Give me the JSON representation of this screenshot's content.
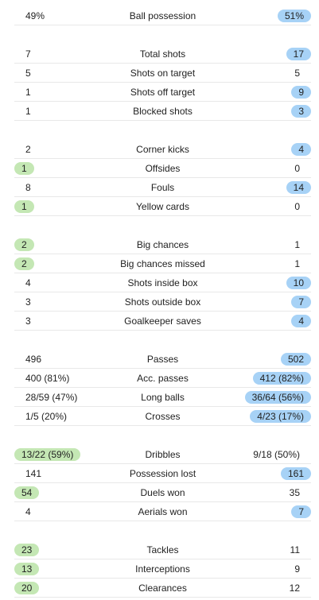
{
  "colors": {
    "home_highlight": "#c4e7b4",
    "away_highlight": "#a7d2f6",
    "divider": "#e8e8e8"
  },
  "groups": [
    {
      "rows": [
        {
          "label": "Ball possession",
          "home": "49%",
          "away": "51%",
          "hl": "away"
        }
      ]
    },
    {
      "rows": [
        {
          "label": "Total shots",
          "home": "7",
          "away": "17",
          "hl": "away"
        },
        {
          "label": "Shots on target",
          "home": "5",
          "away": "5",
          "hl": "none"
        },
        {
          "label": "Shots off target",
          "home": "1",
          "away": "9",
          "hl": "away"
        },
        {
          "label": "Blocked shots",
          "home": "1",
          "away": "3",
          "hl": "away"
        }
      ]
    },
    {
      "rows": [
        {
          "label": "Corner kicks",
          "home": "2",
          "away": "4",
          "hl": "away"
        },
        {
          "label": "Offsides",
          "home": "1",
          "away": "0",
          "hl": "home"
        },
        {
          "label": "Fouls",
          "home": "8",
          "away": "14",
          "hl": "away"
        },
        {
          "label": "Yellow cards",
          "home": "1",
          "away": "0",
          "hl": "home"
        }
      ]
    },
    {
      "rows": [
        {
          "label": "Big chances",
          "home": "2",
          "away": "1",
          "hl": "home"
        },
        {
          "label": "Big chances missed",
          "home": "2",
          "away": "1",
          "hl": "home"
        },
        {
          "label": "Shots inside box",
          "home": "4",
          "away": "10",
          "hl": "away"
        },
        {
          "label": "Shots outside box",
          "home": "3",
          "away": "7",
          "hl": "away"
        },
        {
          "label": "Goalkeeper saves",
          "home": "3",
          "away": "4",
          "hl": "away"
        }
      ]
    },
    {
      "rows": [
        {
          "label": "Passes",
          "home": "496",
          "away": "502",
          "hl": "away"
        },
        {
          "label": "Acc. passes",
          "home": "400 (81%)",
          "away": "412 (82%)",
          "hl": "away"
        },
        {
          "label": "Long balls",
          "home": "28/59 (47%)",
          "away": "36/64 (56%)",
          "hl": "away"
        },
        {
          "label": "Crosses",
          "home": "1/5 (20%)",
          "away": "4/23 (17%)",
          "hl": "away"
        }
      ]
    },
    {
      "rows": [
        {
          "label": "Dribbles",
          "home": "13/22 (59%)",
          "away": "9/18 (50%)",
          "hl": "home"
        },
        {
          "label": "Possession lost",
          "home": "141",
          "away": "161",
          "hl": "away"
        },
        {
          "label": "Duels won",
          "home": "54",
          "away": "35",
          "hl": "home"
        },
        {
          "label": "Aerials won",
          "home": "4",
          "away": "7",
          "hl": "away"
        }
      ]
    },
    {
      "rows": [
        {
          "label": "Tackles",
          "home": "23",
          "away": "11",
          "hl": "home"
        },
        {
          "label": "Interceptions",
          "home": "13",
          "away": "9",
          "hl": "home"
        },
        {
          "label": "Clearances",
          "home": "20",
          "away": "12",
          "hl": "home"
        }
      ]
    }
  ]
}
